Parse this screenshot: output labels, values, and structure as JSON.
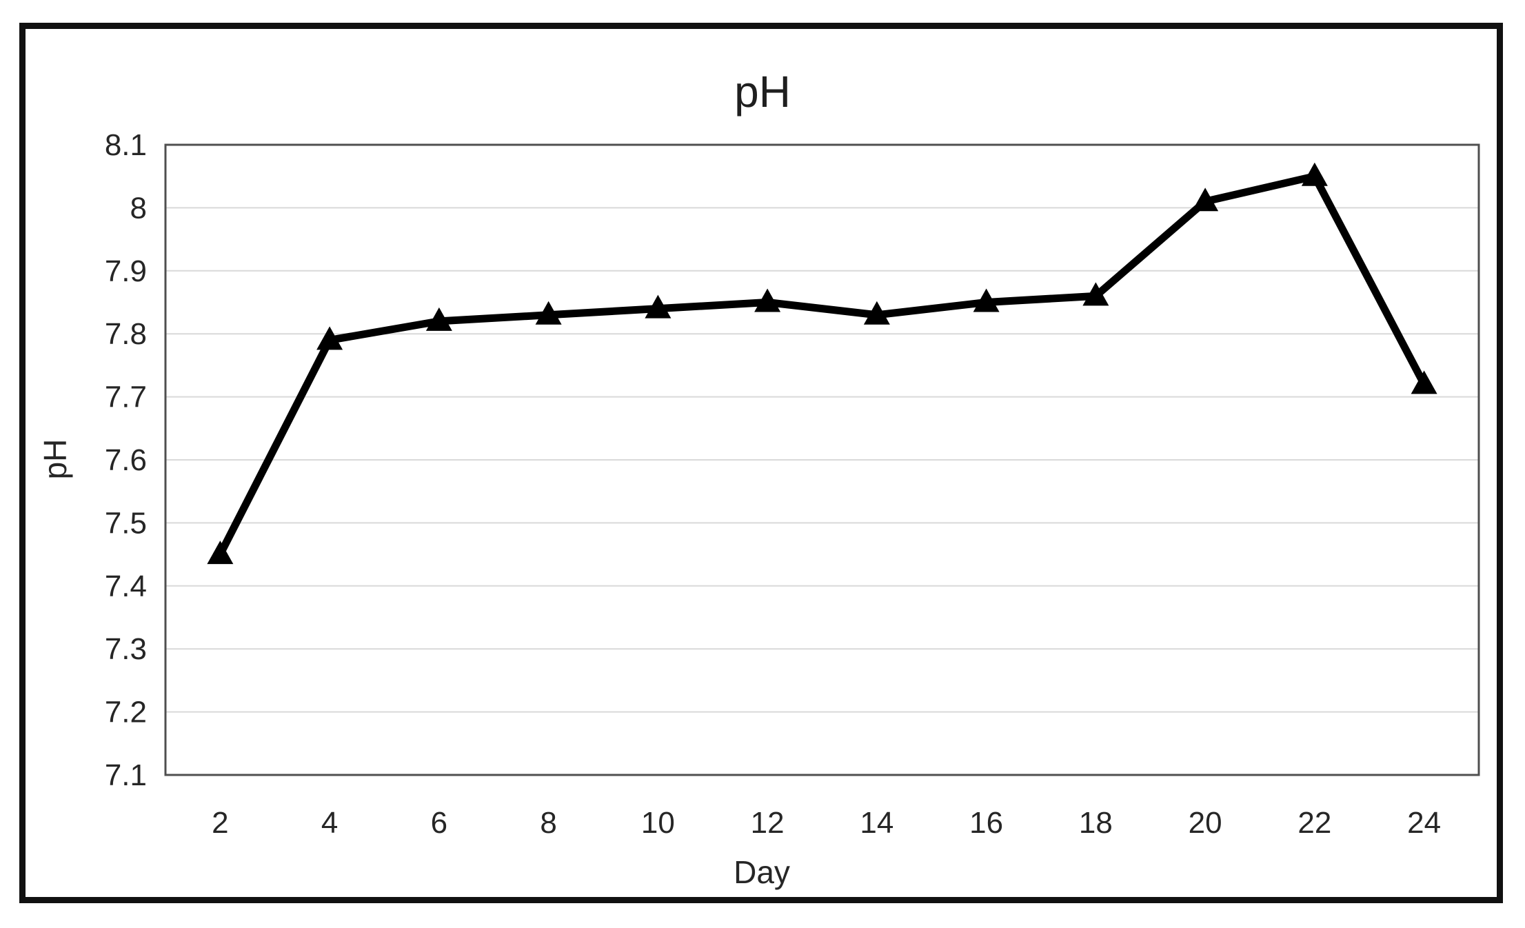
{
  "chart_data": {
    "type": "line",
    "title": "pH",
    "xlabel": "Day",
    "ylabel": "pH",
    "categories": [
      2,
      4,
      6,
      8,
      10,
      12,
      14,
      16,
      18,
      20,
      22,
      24
    ],
    "series": [
      {
        "name": "pH",
        "values": [
          7.45,
          7.79,
          7.82,
          7.83,
          7.84,
          7.85,
          7.83,
          7.85,
          7.86,
          8.01,
          8.05,
          7.72
        ]
      }
    ],
    "ylim": [
      7.1,
      8.1
    ],
    "ytick_step": 0.1,
    "grid": "horizontal",
    "legend_position": "none",
    "marker": "triangle",
    "colors": {
      "series": "#000000",
      "gridline": "#d9d9d9",
      "axis_frame": "#4f4f4f",
      "text": "#262626",
      "border": "#111111"
    }
  }
}
